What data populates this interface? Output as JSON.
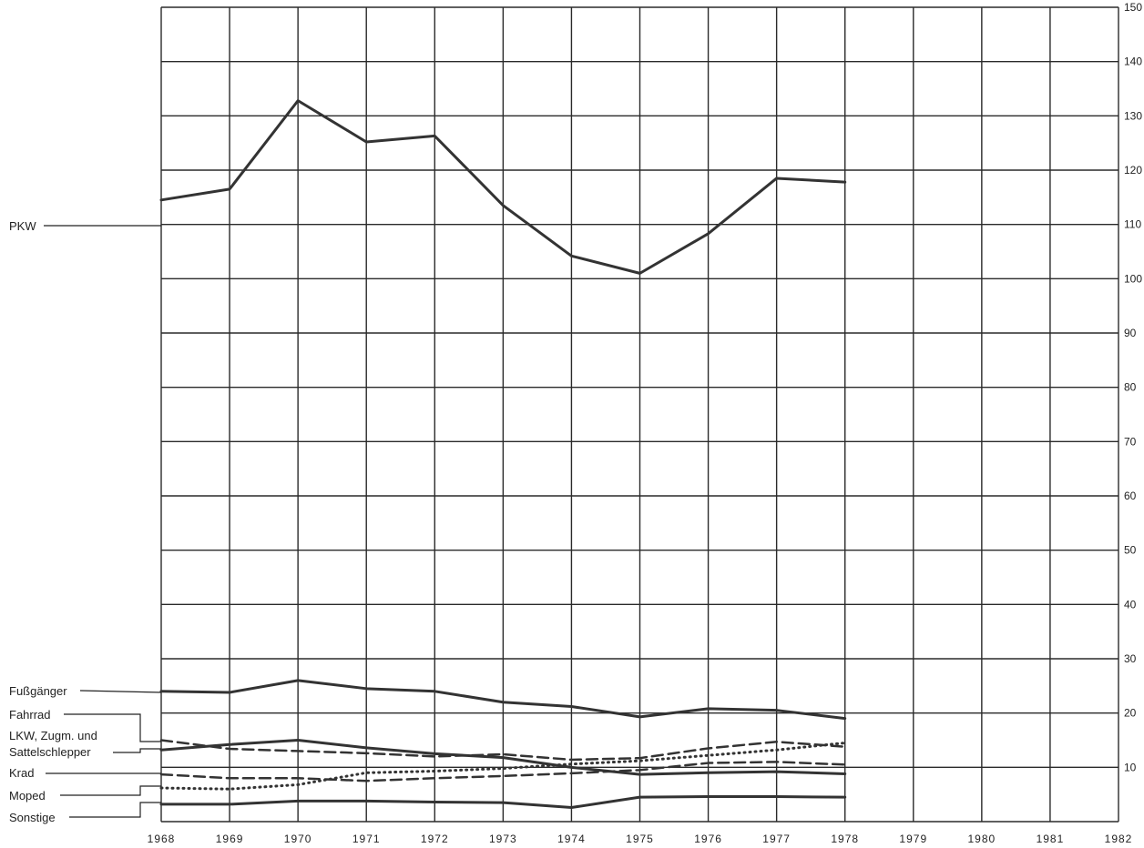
{
  "chart_data": {
    "type": "line",
    "title": "",
    "xlabel": "",
    "ylabel": "",
    "x": [
      1968,
      1969,
      1970,
      1971,
      1972,
      1973,
      1974,
      1975,
      1976,
      1977,
      1978
    ],
    "x_ticks": [
      "1968",
      "1969",
      "1970",
      "1971",
      "1972",
      "1973",
      "1974",
      "1975",
      "1976",
      "1977",
      "1978",
      "1979",
      "1980",
      "1981",
      "1982"
    ],
    "xlim": [
      1968,
      1982
    ],
    "ylim": [
      0,
      150
    ],
    "y_ticks": [
      "10",
      "20",
      "30",
      "40",
      "50",
      "60",
      "70",
      "80",
      "90",
      "100",
      "110",
      "120",
      "130",
      "140",
      "150"
    ],
    "grid": true,
    "legend": "left",
    "series": [
      {
        "name": "PKW",
        "style": "solid",
        "width": 3,
        "values": [
          114.5,
          116.5,
          132.8,
          125.2,
          126.3,
          113.5,
          104.2,
          101.0,
          108.3,
          118.5,
          117.8
        ]
      },
      {
        "name": "Fußgänger",
        "style": "solid",
        "width": 3,
        "values": [
          24.0,
          23.8,
          26.0,
          24.5,
          24.0,
          22.0,
          21.2,
          19.3,
          20.8,
          20.5,
          19.0
        ]
      },
      {
        "name": "Fahrrad",
        "style": "dashed",
        "width": 2.5,
        "values": [
          15.0,
          13.4,
          13.0,
          12.6,
          12.0,
          12.4,
          11.4,
          11.7,
          13.5,
          14.7,
          13.8
        ]
      },
      {
        "name": "LKW, Zugm. und Sattelschlepper",
        "style": "solid",
        "width": 3,
        "values": [
          13.2,
          14.2,
          15.0,
          13.6,
          12.5,
          11.8,
          10.0,
          8.7,
          9.0,
          9.2,
          8.8
        ]
      },
      {
        "name": "Krad",
        "style": "dashed",
        "width": 2.5,
        "values": [
          8.7,
          8.0,
          8.0,
          7.5,
          8.0,
          8.4,
          8.9,
          9.5,
          10.8,
          11.0,
          10.5
        ]
      },
      {
        "name": "Moped",
        "style": "dotted",
        "width": 2.5,
        "values": [
          6.2,
          6.0,
          6.8,
          9.0,
          9.3,
          9.8,
          10.6,
          11.2,
          12.2,
          13.2,
          14.5
        ]
      },
      {
        "name": "Sonstige",
        "style": "solid",
        "width": 3,
        "values": [
          3.2,
          3.2,
          3.8,
          3.8,
          3.6,
          3.5,
          2.6,
          4.5,
          4.6,
          4.6,
          4.5
        ]
      }
    ],
    "legend_labels": {
      "pkw": "PKW",
      "fussgaenger": "Fußgänger",
      "fahrrad": "Fahrrad",
      "lkw_line1": "LKW, Zugm. und",
      "lkw_line2": "Sattelschlepper",
      "krad": "Krad",
      "moped": "Moped",
      "sonstige": "Sonstige"
    }
  }
}
